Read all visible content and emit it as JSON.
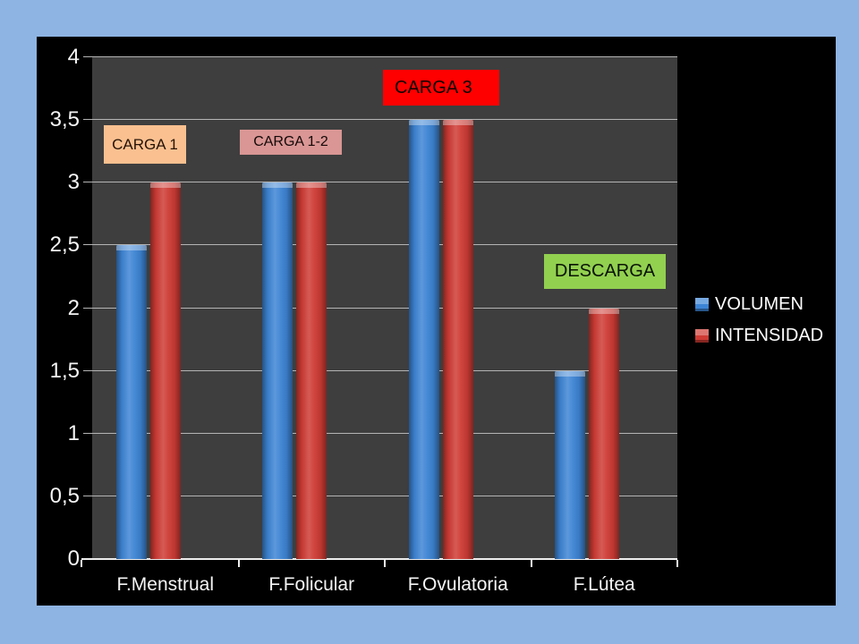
{
  "slide": {
    "background_color": "#8EB4E3",
    "chart_background": "#000000",
    "plot_background": "#3E3E3E",
    "gridline_color": "#B4B4B4",
    "axis_line_color": "#EDEDED",
    "axis_text_color": "#F4F4F4"
  },
  "chart_data": {
    "type": "bar",
    "title": "",
    "categories": [
      "F.Menstrual",
      "F.Folicular",
      "F.Ovulatoria",
      "F.Lútea"
    ],
    "series": [
      {
        "name": "VOLUMEN",
        "color": "#3D84D4",
        "values": [
          2.5,
          3,
          3.5,
          1.5
        ]
      },
      {
        "name": "INTENSIDAD",
        "color": "#CE3B34",
        "values": [
          3,
          3,
          3.5,
          2
        ]
      }
    ],
    "xlabel": "",
    "ylabel": "",
    "ylim": [
      0,
      4
    ],
    "ytick_step": 0.5,
    "ytick_labels": [
      "0",
      "0,5",
      "1",
      "1,5",
      "2",
      "2,5",
      "3",
      "3,5",
      "4"
    ],
    "grid": true,
    "legend_position": "right",
    "annotations": [
      {
        "text": "CARGA 1",
        "bg": "#FAC090",
        "color": "#261307"
      },
      {
        "text": "CARGA 1-2",
        "bg": "#D99694",
        "color": "#140808"
      },
      {
        "text": "CARGA 3",
        "bg": "#FF0000",
        "color": "#0A0000"
      },
      {
        "text": "DESCARGA",
        "bg": "#92D050",
        "color": "#0A1403"
      }
    ]
  }
}
